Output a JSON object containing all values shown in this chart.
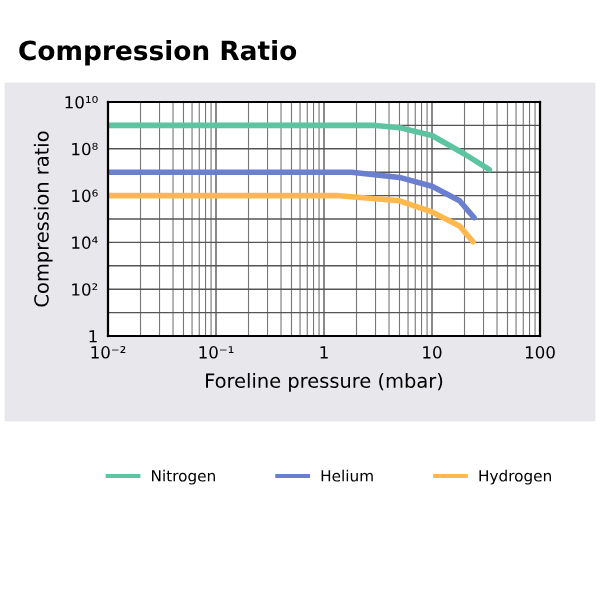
{
  "chart_data": {
    "type": "line",
    "title": "Compression Ratio",
    "xlabel": "Foreline pressure (mbar)",
    "ylabel": "Compression ratio",
    "log": "xy",
    "grid": true,
    "legend": "bottom",
    "marker": "none",
    "line_style": "solid",
    "xlim": [
      0.01,
      100
    ],
    "xticks": [
      {
        "value": 0.01,
        "label": "10⁻²"
      },
      {
        "value": 0.1,
        "label": "10⁻¹"
      },
      1,
      10,
      100
    ],
    "ylim": [
      1,
      10000000000
    ],
    "yticks": [
      1,
      {
        "value": 10,
        "label": null
      },
      {
        "value": 100,
        "label": "10²"
      },
      {
        "value": 1000,
        "label": null
      },
      {
        "value": 10000,
        "label": "10⁴"
      },
      {
        "value": 100000,
        "label": null
      },
      {
        "value": 1000000,
        "label": "10⁶"
      },
      {
        "value": 10000000,
        "label": null
      },
      {
        "value": 100000000,
        "label": "10⁸"
      },
      {
        "value": 1000000000,
        "label": null
      },
      {
        "value": 10000000000,
        "label": "10¹⁰"
      }
    ],
    "series": [
      {
        "name": "Nitrogen",
        "color": "#5cc4a0",
        "x": [
          0.01,
          1,
          3,
          5,
          10,
          20,
          34
        ],
        "values": [
          1000000000,
          1000000000,
          1000000000,
          800000000,
          370000000,
          60000000,
          13000000
        ]
      },
      {
        "name": "Helium",
        "color": "#6a7fd0",
        "x": [
          0.01,
          1,
          1.8,
          5,
          10,
          18,
          24.5
        ],
        "values": [
          10000000,
          10000000,
          10000000,
          6000000,
          2500000,
          600000,
          115000
        ]
      },
      {
        "name": "Hydrogen",
        "color": "#ffb84d",
        "x": [
          0.01,
          1,
          1.3,
          5,
          10,
          18,
          24
        ],
        "values": [
          1000000,
          1000000,
          1000000,
          600000,
          200000,
          50000,
          10700
        ]
      }
    ]
  }
}
